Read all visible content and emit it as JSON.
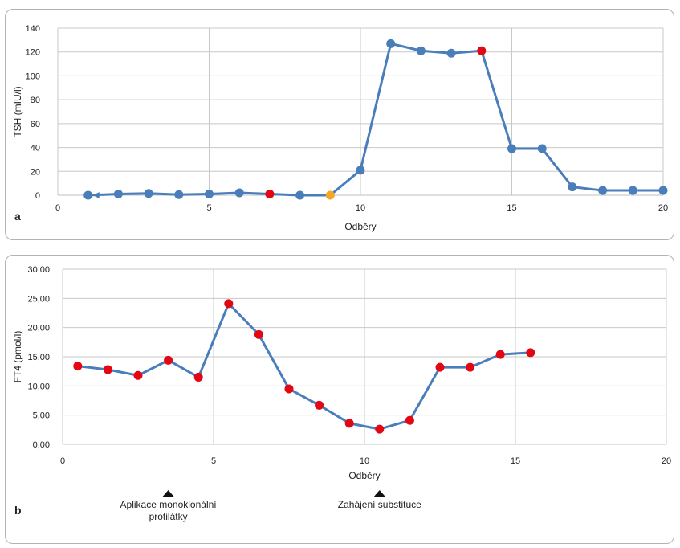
{
  "chart_data": [
    {
      "type": "line",
      "panel_label": "a",
      "xlabel": "Odběry",
      "ylabel": "TSH (mIU/l)",
      "xlim": [
        0,
        20
      ],
      "ylim": [
        0,
        140
      ],
      "xticks": [
        0,
        5,
        10,
        15,
        20
      ],
      "yticks": [
        0,
        20,
        40,
        60,
        80,
        100,
        120,
        140
      ],
      "ytick_labels": [
        "0",
        "20",
        "40",
        "60",
        "80",
        "100",
        "120",
        "140"
      ],
      "grid": true,
      "line_color": "#4a7ebb",
      "x": [
        1,
        2,
        3,
        4,
        5,
        6,
        7,
        8,
        9,
        10,
        11,
        12,
        13,
        14,
        15,
        16,
        17,
        18,
        19,
        20
      ],
      "values": [
        0,
        1,
        1.5,
        0.5,
        1,
        2,
        1,
        0,
        0,
        21,
        127,
        121,
        119,
        121,
        39,
        39,
        7,
        4,
        4,
        4
      ],
      "point_colors": [
        "#4a7ebb",
        "#4a7ebb",
        "#4a7ebb",
        "#4a7ebb",
        "#4a7ebb",
        "#4a7ebb",
        "#e30613",
        "#4a7ebb",
        "#f5a623",
        "#4a7ebb",
        "#4a7ebb",
        "#4a7ebb",
        "#4a7ebb",
        "#e30613",
        "#4a7ebb",
        "#4a7ebb",
        "#4a7ebb",
        "#4a7ebb",
        "#4a7ebb",
        "#4a7ebb"
      ]
    },
    {
      "type": "line",
      "panel_label": "b",
      "xlabel": "Odběry",
      "ylabel": "FT4 (pmol/l)",
      "xlim": [
        0,
        20
      ],
      "ylim": [
        0,
        30
      ],
      "xticks": [
        0,
        5,
        10,
        15,
        20
      ],
      "yticks": [
        0,
        5,
        10,
        15,
        20,
        25,
        30
      ],
      "ytick_labels": [
        "0,00",
        "5,00",
        "10,00",
        "15,00",
        "20,00",
        "25,00",
        "30,00"
      ],
      "grid": true,
      "line_color": "#4a7ebb",
      "x": [
        0.5,
        1.5,
        2.5,
        3.5,
        4.5,
        5.5,
        6.5,
        7.5,
        8.5,
        9.5,
        10.5,
        11.5,
        12.5,
        13.5,
        14.5,
        15.5
      ],
      "values": [
        13.4,
        12.8,
        11.8,
        14.4,
        11.5,
        24.1,
        18.8,
        9.5,
        6.7,
        3.6,
        2.6,
        4.1,
        13.2,
        13.2,
        15.4,
        15.7
      ],
      "point_colors": [
        "#e30613",
        "#e30613",
        "#e30613",
        "#e30613",
        "#e30613",
        "#e30613",
        "#e30613",
        "#e30613",
        "#e30613",
        "#e30613",
        "#e30613",
        "#e30613",
        "#e30613",
        "#e30613",
        "#e30613",
        "#e30613"
      ],
      "annotations": [
        {
          "x": 3.5,
          "lines": [
            "Aplikace monoklonální",
            "protilátky"
          ]
        },
        {
          "x": 10.5,
          "lines": [
            "Zahájení substituce"
          ]
        }
      ]
    }
  ]
}
